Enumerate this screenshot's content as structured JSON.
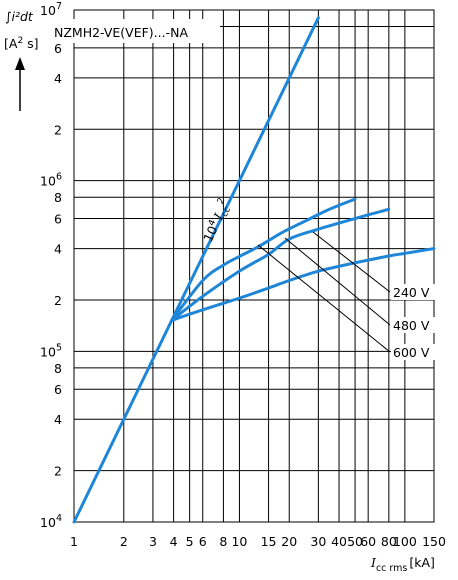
{
  "chart_data": {
    "type": "line",
    "title": "NZMH2-VE(VEF)...-NA",
    "ylabel": "∫i²dt",
    "ylabel_unit": "[A",
    "ylabel_unit_exp": "2",
    "ylabel_unit_tail": " s]",
    "xlabel": "I",
    "xlabel_sub": "cc rms",
    "xlabel_unit": "[kA]",
    "xscale": "log",
    "yscale": "log",
    "xlim": [
      1,
      150
    ],
    "ylim": [
      10000,
      10000000
    ],
    "grid": true,
    "x_ticks": [
      {
        "v": 1,
        "t": "1"
      },
      {
        "v": 2,
        "t": "2"
      },
      {
        "v": 3,
        "t": "3"
      },
      {
        "v": 4,
        "t": "4"
      },
      {
        "v": 5,
        "t": "5"
      },
      {
        "v": 6,
        "t": "6"
      },
      {
        "v": 8,
        "t": "8"
      },
      {
        "v": 10,
        "t": "10"
      },
      {
        "v": 15,
        "t": "15"
      },
      {
        "v": 20,
        "t": "20"
      },
      {
        "v": 30,
        "t": "30"
      },
      {
        "v": 40,
        "t": "40"
      },
      {
        "v": 50,
        "t": "50"
      },
      {
        "v": 60,
        "t": "60"
      },
      {
        "v": 80,
        "t": "80"
      },
      {
        "v": 100,
        "t": "100"
      },
      {
        "v": 150,
        "t": "150"
      }
    ],
    "y_ticks": [
      {
        "v": 10000,
        "m": "10",
        "e": "4"
      },
      {
        "v": 20000,
        "m": "2"
      },
      {
        "v": 40000,
        "m": "4"
      },
      {
        "v": 60000,
        "m": "6"
      },
      {
        "v": 80000,
        "m": "8"
      },
      {
        "v": 100000,
        "m": "10",
        "e": "5"
      },
      {
        "v": 200000,
        "m": "2"
      },
      {
        "v": 400000,
        "m": "4"
      },
      {
        "v": 600000,
        "m": "6"
      },
      {
        "v": 800000,
        "m": "8"
      },
      {
        "v": 1000000,
        "m": "10",
        "e": "6"
      },
      {
        "v": 2000000,
        "m": "2"
      },
      {
        "v": 4000000,
        "m": "4"
      },
      {
        "v": 6000000,
        "m": "6"
      },
      {
        "v": 8000000,
        "m": "8"
      },
      {
        "v": 10000000,
        "m": "10",
        "e": "7"
      }
    ],
    "series": [
      {
        "label_base": "10",
        "label_exp": "4",
        "label_var": "I",
        "label_sub": "cc",
        "label_sup": "2",
        "color": "#1d86d8",
        "x": [
          1,
          30
        ],
        "y": [
          10000,
          9000000
        ]
      },
      {
        "label": "240 V",
        "color": "#1d86d8",
        "x": [
          3.9,
          6,
          10,
          15,
          20,
          30,
          50,
          80,
          100,
          150
        ],
        "y": [
          152000,
          175000,
          205000,
          235000,
          260000,
          295000,
          330000,
          362000,
          375000,
          400000
        ]
      },
      {
        "label": "480 V",
        "color": "#1d86d8",
        "x": [
          3.9,
          6,
          10,
          15,
          20,
          30,
          50,
          80
        ],
        "y": [
          152000,
          210000,
          295000,
          370000,
          455000,
          520000,
          600000,
          680000
        ]
      },
      {
        "label": "600 V",
        "color": "#1d86d8",
        "x": [
          3.9,
          6,
          8,
          10,
          13,
          18,
          25,
          35,
          50
        ],
        "y": [
          152000,
          260000,
          320000,
          360000,
          410000,
          495000,
          580000,
          680000,
          780000
        ]
      }
    ]
  }
}
